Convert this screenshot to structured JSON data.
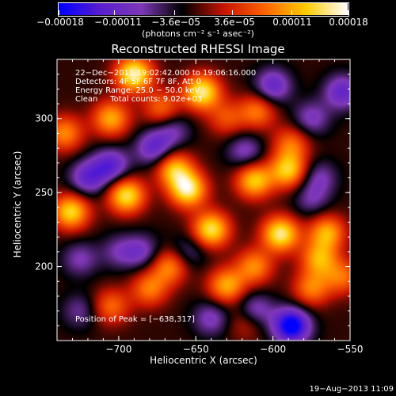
{
  "chart_data": {
    "type": "heatmap",
    "title": "Reconstructed RHESSI Image",
    "xlabel": "Heliocentric X (arcsec)",
    "ylabel": "Heliocentric Y (arcsec)",
    "xlim": [
      -740,
      -550
    ],
    "ylim": [
      150,
      340
    ],
    "x_ticks": [
      {
        "value": -700,
        "label": "−700"
      },
      {
        "value": -650,
        "label": "−650"
      },
      {
        "value": -600,
        "label": "−600"
      },
      {
        "value": -550,
        "label": "−550"
      }
    ],
    "y_ticks": [
      {
        "value": 200,
        "label": "200"
      },
      {
        "value": 250,
        "label": "250"
      },
      {
        "value": 300,
        "label": "300"
      }
    ],
    "colorbar": {
      "range": [
        -0.00018,
        0.00018
      ],
      "tick_labels": [
        "−0.00018",
        "−0.00011",
        "−3.6e−05",
        "3.6e−05",
        "0.00011",
        "0.00018"
      ],
      "unit_label": "(photons cm⁻² s⁻¹ asec⁻²)",
      "colormap": [
        "#0000ff",
        "#5a1ecf",
        "#7f38b8",
        "#000000",
        "#c81400",
        "#ff6400",
        "#ffcd00",
        "#ffffff"
      ]
    },
    "annotations": [
      "22−Dec−2011 19:02:42.000 to 19:06:16.000",
      "Detectors: 4F 5F 6F 7F 8F, Att 0",
      "Energy Range: 25.0 − 50.0 keV",
      "Clean     Total counts: 9.02e+03"
    ],
    "peak_label": "Position of Peak = [−638,317]",
    "peak": [
      -638,
      317
    ],
    "sources": [
      {
        "x": -690,
        "y": 330,
        "value": 1.0
      },
      {
        "x": -646,
        "y": 318,
        "value": 0.95
      },
      {
        "x": -610,
        "y": 305,
        "value": 0.55
      },
      {
        "x": -705,
        "y": 300,
        "value": 0.7
      },
      {
        "x": -735,
        "y": 290,
        "value": 0.6
      },
      {
        "x": -672,
        "y": 307,
        "value": 0.5
      },
      {
        "x": -731,
        "y": 237,
        "value": 0.85
      },
      {
        "x": -695,
        "y": 248,
        "value": 0.9
      },
      {
        "x": -655,
        "y": 252,
        "value": 0.95
      },
      {
        "x": -664,
        "y": 266,
        "value": 0.75
      },
      {
        "x": -640,
        "y": 225,
        "value": 0.9
      },
      {
        "x": -612,
        "y": 258,
        "value": 0.8
      },
      {
        "x": -590,
        "y": 265,
        "value": 0.8
      },
      {
        "x": -595,
        "y": 222,
        "value": 0.95
      },
      {
        "x": -565,
        "y": 223,
        "value": 0.7
      },
      {
        "x": -612,
        "y": 200,
        "value": 0.6
      },
      {
        "x": -667,
        "y": 200,
        "value": 0.6
      },
      {
        "x": -630,
        "y": 187,
        "value": 0.7
      },
      {
        "x": -705,
        "y": 173,
        "value": 0.5
      },
      {
        "x": -680,
        "y": 185,
        "value": 0.55
      },
      {
        "x": -570,
        "y": 205,
        "value": 0.65
      },
      {
        "x": -555,
        "y": 193,
        "value": 0.5
      },
      {
        "x": -575,
        "y": 185,
        "value": 0.55
      },
      {
        "x": -617,
        "y": 163,
        "value": 0.35
      },
      {
        "x": -588,
        "y": 283,
        "value": 0.5
      },
      {
        "x": -630,
        "y": 300,
        "value": 0.4
      },
      {
        "x": -720,
        "y": 260,
        "value": -0.55
      },
      {
        "x": -665,
        "y": 292,
        "value": -0.35
      },
      {
        "x": -705,
        "y": 268,
        "value": -0.6
      },
      {
        "x": -677,
        "y": 280,
        "value": -0.55
      },
      {
        "x": -685,
        "y": 210,
        "value": -0.4
      },
      {
        "x": -600,
        "y": 322,
        "value": -0.55
      },
      {
        "x": -555,
        "y": 318,
        "value": -0.55
      },
      {
        "x": -575,
        "y": 300,
        "value": -0.4
      },
      {
        "x": -618,
        "y": 278,
        "value": -0.4
      },
      {
        "x": -570,
        "y": 260,
        "value": -0.35
      },
      {
        "x": -655,
        "y": 210,
        "value": -0.3
      },
      {
        "x": -725,
        "y": 205,
        "value": -0.35
      },
      {
        "x": -588,
        "y": 160,
        "value": -1.0
      },
      {
        "x": -612,
        "y": 170,
        "value": -0.5
      },
      {
        "x": -640,
        "y": 165,
        "value": -0.4
      },
      {
        "x": -575,
        "y": 245,
        "value": -0.3
      },
      {
        "x": -700,
        "y": 210,
        "value": -0.3
      },
      {
        "x": -725,
        "y": 170,
        "value": -0.3
      }
    ]
  },
  "footer_date": "19−Aug−2013 11:09"
}
